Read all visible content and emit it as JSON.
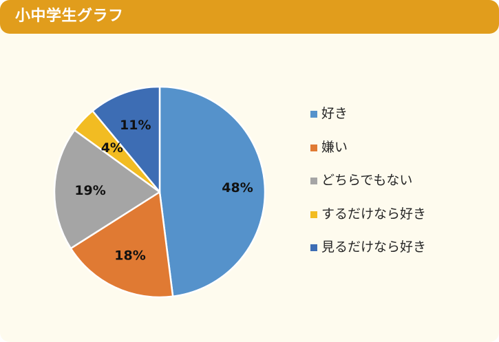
{
  "header": {
    "title": "小中学生グラフ"
  },
  "colors": {
    "header_bg": "#e19d1c",
    "card_bg": "#fefbee",
    "slice_border": "#ffffff"
  },
  "legend": {
    "items": [
      {
        "label": "好き",
        "color": "#5592cb"
      },
      {
        "label": "嫌い",
        "color": "#e07a33"
      },
      {
        "label": "どちらでもない",
        "color": "#a5a5a5"
      },
      {
        "label": "するだけなら好き",
        "color": "#f2bc22"
      },
      {
        "label": "見るだけなら好き",
        "color": "#3d6db4"
      }
    ]
  },
  "chart_data": {
    "type": "pie",
    "title": "小中学生グラフ",
    "categories": [
      "好き",
      "嫌い",
      "どちらでもない",
      "するだけなら好き",
      "見るだけなら好き"
    ],
    "values": [
      48,
      18,
      19,
      4,
      11
    ],
    "labels": [
      "48%",
      "18%",
      "19%",
      "4%",
      "11%"
    ],
    "colors": [
      "#5592cb",
      "#e07a33",
      "#a5a5a5",
      "#f2bc22",
      "#3d6db4"
    ],
    "start_angle": "12 o'clock, clockwise",
    "legend_position": "right",
    "unit": "%"
  }
}
